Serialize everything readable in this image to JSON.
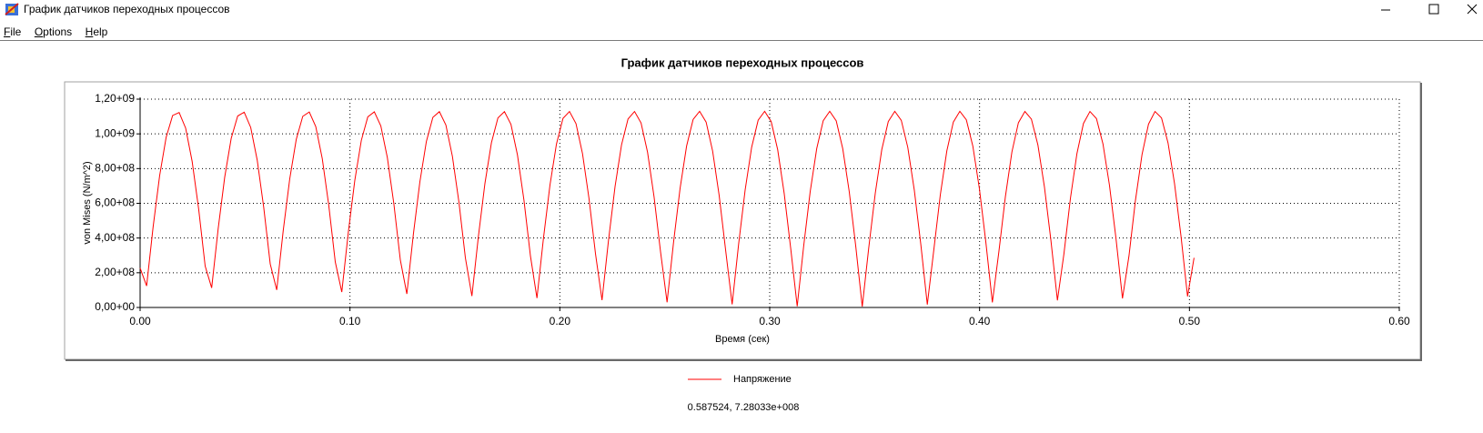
{
  "window": {
    "title": "График датчиков переходных процессов",
    "menu": [
      "File",
      "Options",
      "Help"
    ]
  },
  "chart_data": {
    "type": "line",
    "title": "График датчиков переходных процессов",
    "x_label": "Время (сек)",
    "y_label": "von Mises (N/m^2)",
    "xlim": [
      0,
      0.6
    ],
    "xticks": [
      {
        "value": 0,
        "label": "0.00"
      },
      {
        "value": 0.1,
        "label": "0.10"
      },
      {
        "value": 0.2,
        "label": "0.20"
      },
      {
        "value": 0.3,
        "label": "0.30"
      },
      {
        "value": 0.4,
        "label": "0.40"
      },
      {
        "value": 0.5,
        "label": "0.50"
      },
      {
        "value": 0.6,
        "label": "0.60"
      }
    ],
    "ylim": [
      0,
      1200000000.0
    ],
    "yticks": [
      {
        "value": 0,
        "label": "0,00+00"
      },
      {
        "value": 200000000.0,
        "label": "2,00+08"
      },
      {
        "value": 400000000.0,
        "label": "4,00+08"
      },
      {
        "value": 600000000.0,
        "label": "6,00+08"
      },
      {
        "value": 800000000.0,
        "label": "8,00+08"
      },
      {
        "value": 1000000000.0,
        "label": "1,00+09"
      },
      {
        "value": 1200000000.0,
        "label": "1,20+09"
      }
    ],
    "grid": true,
    "legend": "bottom",
    "x": [
      0,
      0.0031,
      0.0062,
      0.0093,
      0.0124,
      0.0155,
      0.0186,
      0.0217,
      0.0248,
      0.0279,
      0.031,
      0.0341,
      0.0372,
      0.0403,
      0.0434,
      0.0465,
      0.0496,
      0.0527,
      0.0558,
      0.0589,
      0.062,
      0.0651,
      0.0682,
      0.0713,
      0.0744,
      0.0775,
      0.0806,
      0.0837,
      0.0868,
      0.0899,
      0.093,
      0.0961,
      0.0992,
      0.1023,
      0.1054,
      0.1085,
      0.1116,
      0.1147,
      0.1178,
      0.1209,
      0.124,
      0.1271,
      0.1302,
      0.1333,
      0.1364,
      0.1395,
      0.1426,
      0.1457,
      0.1488,
      0.1519,
      0.155,
      0.1581,
      0.1612,
      0.1643,
      0.1674,
      0.1705,
      0.1736,
      0.1767,
      0.1798,
      0.1829,
      0.186,
      0.1891,
      0.1922,
      0.1953,
      0.1984,
      0.2015,
      0.2046,
      0.2077,
      0.2108,
      0.2139,
      0.217,
      0.2201,
      0.2232,
      0.2263,
      0.2294,
      0.2325,
      0.2356,
      0.2387,
      0.2418,
      0.2449,
      0.248,
      0.2511,
      0.2542,
      0.2573,
      0.2604,
      0.2635,
      0.2666,
      0.2697,
      0.2728,
      0.2759,
      0.279,
      0.2821,
      0.2852,
      0.2883,
      0.2914,
      0.2945,
      0.2976,
      0.3007,
      0.3038,
      0.3069,
      0.31,
      0.3131,
      0.3162,
      0.3193,
      0.3224,
      0.3255,
      0.3286,
      0.3317,
      0.3348,
      0.3379,
      0.341,
      0.3441,
      0.3472,
      0.3503,
      0.3534,
      0.3565,
      0.3596,
      0.3627,
      0.3658,
      0.3689,
      0.372,
      0.3751,
      0.3782,
      0.3813,
      0.3844,
      0.3875,
      0.3906,
      0.3937,
      0.3968,
      0.3999,
      0.403,
      0.4061,
      0.4092,
      0.4123,
      0.4154,
      0.4185,
      0.4216,
      0.4247,
      0.4278,
      0.4309,
      0.434,
      0.4371,
      0.4402,
      0.4433,
      0.4464,
      0.4495,
      0.4526,
      0.4557,
      0.4588,
      0.4619,
      0.465,
      0.4681,
      0.4712,
      0.4743,
      0.4774,
      0.4805,
      0.4836,
      0.4867,
      0.4898,
      0.4929,
      0.496,
      0.4991,
      0.5022
    ],
    "series": [
      {
        "name": "Напряжение",
        "color": "#ff0000",
        "values": [
          227000000.0,
          124000000.0,
          464000000.0,
          759000000.0,
          980000000.0,
          1106000000.0,
          1123000000.0,
          1033000000.0,
          841000000.0,
          567000000.0,
          238000000.0,
          113000000.0,
          454000000.0,
          750000000.0,
          974000000.0,
          1103000000.0,
          1125000000.0,
          1037000000.0,
          849000000.0,
          577000000.0,
          251000000.0,
          101000000.0,
          443000000.0,
          741000000.0,
          968000000.0,
          1101000000.0,
          1126000000.0,
          1042000000.0,
          857000000.0,
          588000000.0,
          262000000.0,
          89000000.0,
          432000000.0,
          732000000.0,
          962000000.0,
          1098000000.0,
          1127000000.0,
          1046000000.0,
          864000000.0,
          598000000.0,
          273000000.0,
          78000000.0,
          421000000.0,
          723000000.0,
          956000000.0,
          1095000000.0,
          1128000000.0,
          1051000000.0,
          871000000.0,
          608000000.0,
          285000000.0,
          66000000.0,
          410000000.0,
          714000000.0,
          949000000.0,
          1092000000.0,
          1128000000.0,
          1055000000.0,
          879000000.0,
          618000000.0,
          296000000.0,
          54000000.0,
          399000000.0,
          705000000.0,
          942000000.0,
          1089000000.0,
          1129000000.0,
          1059000000.0,
          886000000.0,
          627000000.0,
          308000000.0,
          42000000.0,
          388000000.0,
          696000000.0,
          937000000.0,
          1086000000.0,
          1129000000.0,
          1063000000.0,
          894000000.0,
          637000000.0,
          319000000.0,
          30000000.0,
          377000000.0,
          687000000.0,
          930000000.0,
          1083000000.0,
          1130000000.0,
          1068000000.0,
          901000000.0,
          647000000.0,
          330000000.0,
          18000000.0,
          366000000.0,
          677000000.0,
          923000000.0,
          1079000000.0,
          1130000000.0,
          1071000000.0,
          909000000.0,
          657000000.0,
          341000000.0,
          7000000.0,
          355000000.0,
          668000000.0,
          915000000.0,
          1076000000.0,
          1130000000.0,
          1075000000.0,
          915000000.0,
          667000000.0,
          353000000.0,
          5000000.0,
          344000000.0,
          658000000.0,
          909000000.0,
          1071000000.0,
          1130000000.0,
          1078000000.0,
          922000000.0,
          676000000.0,
          364000000.0,
          17000000.0,
          332000000.0,
          649000000.0,
          902000000.0,
          1068000000.0,
          1130000000.0,
          1081000000.0,
          929000000.0,
          686000000.0,
          375000000.0,
          29000000.0,
          321000000.0,
          638000000.0,
          895000000.0,
          1064000000.0,
          1129000000.0,
          1085000000.0,
          936000000.0,
          695000000.0,
          386000000.0,
          41000000.0,
          309000000.0,
          629000000.0,
          887000000.0,
          1060000000.0,
          1129000000.0,
          1088000000.0,
          942000000.0,
          704000000.0,
          398000000.0,
          52000000.0,
          298000000.0,
          619000000.0,
          880000000.0,
          1056000000.0,
          1129000000.0,
          1092000000.0,
          948000000.0,
          713000000.0,
          409000000.0,
          64000000.0,
          286000000.0
        ]
      }
    ]
  },
  "cursor_readout": "0.587524, 7.28033e+008"
}
